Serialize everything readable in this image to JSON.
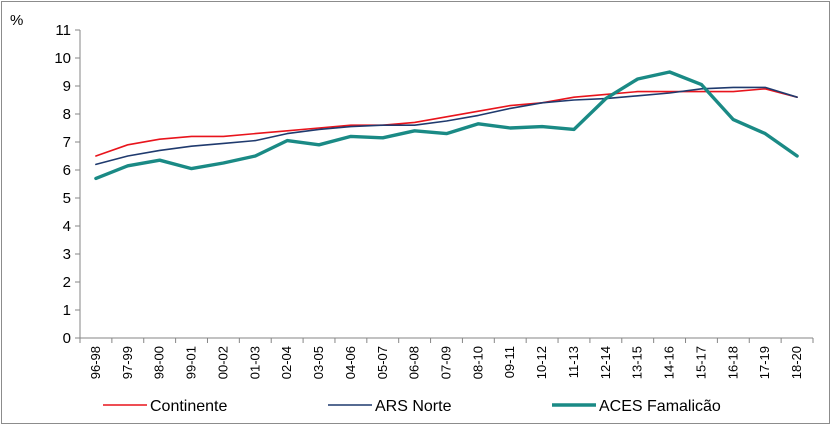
{
  "chart_data": {
    "type": "line",
    "unit_label": "%",
    "ylim": [
      0,
      11
    ],
    "yticks": [
      0,
      1,
      2,
      3,
      4,
      5,
      6,
      7,
      8,
      9,
      10,
      11
    ],
    "grid": false,
    "legend_position": "bottom",
    "categories": [
      "96-98",
      "97-99",
      "98-00",
      "99-01",
      "00-02",
      "01-03",
      "02-04",
      "03-05",
      "04-06",
      "05-07",
      "06-08",
      "07-09",
      "08-10",
      "09-11",
      "10-12",
      "11-13",
      "12-14",
      "13-15",
      "14-16",
      "15-17",
      "16-18",
      "17-19",
      "18-20"
    ],
    "series": [
      {
        "name": "Continente",
        "color": "#e8141c",
        "width": 1.6,
        "values": [
          6.5,
          6.9,
          7.1,
          7.2,
          7.2,
          7.3,
          7.4,
          7.5,
          7.6,
          7.6,
          7.7,
          7.9,
          8.1,
          8.3,
          8.4,
          8.6,
          8.7,
          8.8,
          8.8,
          8.8,
          8.8,
          8.9,
          8.6
        ]
      },
      {
        "name": "ARS Norte",
        "color": "#1f3a6e",
        "width": 1.6,
        "values": [
          6.2,
          6.5,
          6.7,
          6.85,
          6.95,
          7.05,
          7.3,
          7.45,
          7.55,
          7.6,
          7.6,
          7.75,
          7.95,
          8.2,
          8.4,
          8.5,
          8.55,
          8.65,
          8.75,
          8.9,
          8.95,
          8.95,
          8.6
        ]
      },
      {
        "name": "ACES Famalicão",
        "color": "#1a8a85",
        "width": 3.4,
        "values": [
          5.7,
          6.15,
          6.35,
          6.05,
          6.25,
          6.5,
          7.05,
          6.9,
          7.2,
          7.15,
          7.4,
          7.3,
          7.65,
          7.5,
          7.55,
          7.45,
          8.55,
          9.25,
          9.5,
          9.05,
          7.8,
          7.3,
          6.5
        ]
      }
    ]
  }
}
